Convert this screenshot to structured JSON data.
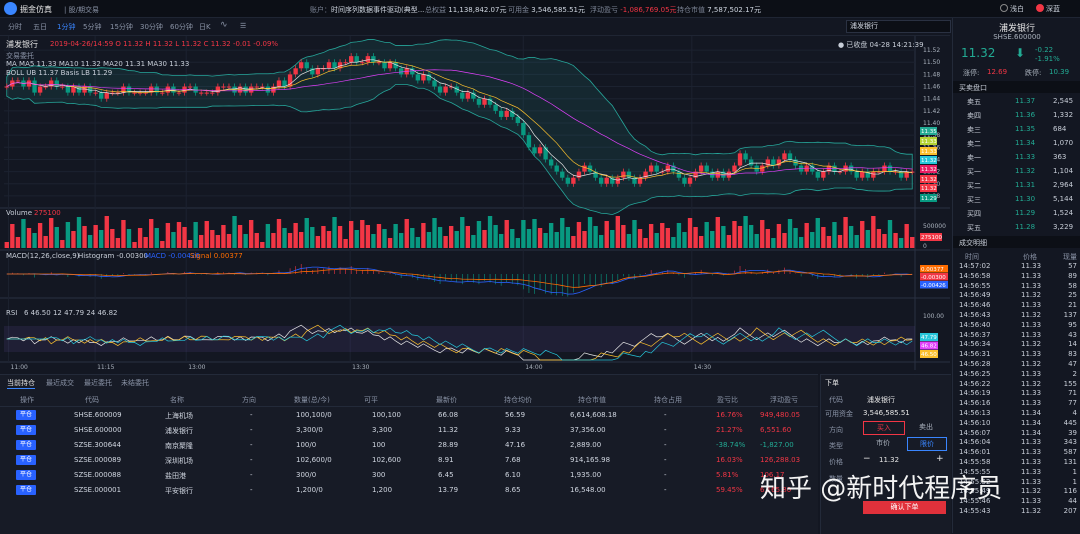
{
  "header": {
    "app_title": "掘金仿真",
    "app_sub": "| 股/期交易",
    "account_label": "账户：",
    "account_name": "时间序列数据事件驱动(典型...",
    "total_assets_label": "总权益",
    "total_assets": "11,138,842.07元",
    "available_label": "可用金",
    "available": "3,546,585.51元",
    "float_pnl_label": "浮动盈亏",
    "float_pnl": "-1,086,769.05元",
    "market_value_label": "持仓市值",
    "market_value": "7,587,502.17元",
    "theme_light": "浅白",
    "theme_dark": "深蓝"
  },
  "periods": [
    "分时",
    "五日",
    "1分钟",
    "5分钟",
    "15分钟",
    "30分钟",
    "60分钟",
    "日K"
  ],
  "active_period": "1分钟",
  "search_value": "浦发银行",
  "chart": {
    "stock_name": "浦发银行",
    "bar_info": "2019-04-26/14:59 O 11.32 H 11.32 L 11.32 C 11.32 -0.01 -0.09%",
    "sub_label": "交易委托",
    "ma_line": "MA  MA5 11.33  MA10 11.32  MA20 11.31  MA30 11.33",
    "boll_line": "BOLL UB 11.37 Basis LB 11.29",
    "close_note": "● 已收盘 04-28 14:21:39",
    "y_labels": [
      "11.52",
      "11.50",
      "11.48",
      "11.46",
      "11.44",
      "11.42",
      "11.40",
      "11.38",
      "11.36",
      "11.34",
      "11.32",
      "11.30",
      "11.28"
    ],
    "price_badges": [
      "11.35",
      "11.33",
      "11.33",
      "11.32",
      "11.32",
      "11.32",
      "11.32",
      "11.29"
    ],
    "volume_label": "Volume",
    "volume_value": "275100",
    "volume_y": [
      "500000",
      "0"
    ],
    "volume_badge": "275100",
    "macd_label": "MACD(12,26,close,9)",
    "macd_hist": "Histogram -0.00300",
    "macd_macd": "MACD -0.00426",
    "macd_signal": "Signal 0.00377",
    "macd_badges": [
      "0.00377",
      "-0.00300",
      "-0.00426"
    ],
    "rsi_label": "RSI",
    "rsi_values": "6 46.50  12 47.79  24 46.82",
    "rsi_y": "100.00",
    "rsi_badges": [
      "47.79",
      "46.82",
      "46.50"
    ],
    "time_labels": [
      "11:00",
      "11:15",
      "13:00",
      "13:30",
      "14:00",
      "14:30"
    ]
  },
  "chart_data": {
    "type": "candlestick",
    "title": "浦发银行",
    "xlabel": "",
    "ylabel": "",
    "ylim": [
      11.27,
      11.53
    ],
    "close": [
      11.46,
      11.47,
      11.47,
      11.46,
      11.47,
      11.45,
      11.46,
      11.46,
      11.47,
      11.46,
      11.46,
      11.45,
      11.46,
      11.45,
      11.46,
      11.45,
      11.45,
      11.44,
      11.45,
      11.45,
      11.45,
      11.46,
      11.45,
      11.45,
      11.45,
      11.45,
      11.46,
      11.45,
      11.45,
      11.46,
      11.45,
      11.45,
      11.46,
      11.46,
      11.45,
      11.45,
      11.45,
      11.45,
      11.46,
      11.46,
      11.46,
      11.45,
      11.46,
      11.45,
      11.46,
      11.46,
      11.46,
      11.45,
      11.46,
      11.47,
      11.46,
      11.48,
      11.49,
      11.5,
      11.49,
      11.48,
      11.49,
      11.49,
      11.5,
      11.49,
      11.5,
      11.5,
      11.51,
      11.5,
      11.5,
      11.51,
      11.5,
      11.5,
      11.49,
      11.5,
      11.49,
      11.48,
      11.49,
      11.48,
      11.47,
      11.48,
      11.47,
      11.46,
      11.45,
      11.46,
      11.46,
      11.45,
      11.44,
      11.45,
      11.44,
      11.43,
      11.44,
      11.43,
      11.42,
      11.41,
      11.42,
      11.41,
      11.4,
      11.38,
      11.36,
      11.35,
      11.36,
      11.34,
      11.33,
      11.32,
      11.31,
      11.3,
      11.31,
      11.32,
      11.33,
      11.32,
      11.31,
      11.3,
      11.31,
      11.3,
      11.31,
      11.32,
      11.31,
      11.3,
      11.31,
      11.32,
      11.33,
      11.32,
      11.32,
      11.33,
      11.32,
      11.31,
      11.3,
      11.31,
      11.32,
      11.33,
      11.32,
      11.31,
      11.32,
      11.31,
      11.32,
      11.33,
      11.35,
      11.34,
      11.33,
      11.32,
      11.33,
      11.34,
      11.33,
      11.34,
      11.35,
      11.34,
      11.33,
      11.32,
      11.33,
      11.32,
      11.31,
      11.32,
      11.33,
      11.32,
      11.32,
      11.33,
      11.32,
      11.31,
      11.32,
      11.31,
      11.32,
      11.32,
      11.33,
      11.32,
      11.32,
      11.31,
      11.32,
      11.32
    ],
    "volume_ylim": [
      0,
      800000
    ]
  },
  "bottom": {
    "tabs": [
      "当前持仓",
      "最近成交",
      "最近委托",
      "未结委托"
    ],
    "columns": [
      "操作",
      "代码",
      "名称",
      "方向",
      "数量(总/今)",
      "可平",
      "最新价",
      "持仓均价",
      "持仓市值",
      "持仓占用",
      "盈亏比",
      "浮动盈亏"
    ],
    "close_label": "平仓",
    "rows": [
      {
        "code": "SHSE.600009",
        "name": "上海机场",
        "dir": "-",
        "qty": "100,100/0",
        "avail": "100,100",
        "last": "66.08",
        "avg": "56.59",
        "mv": "6,614,608.18",
        "occ": "-",
        "ratio": "16.76%",
        "pnl": "949,480.05",
        "sign": "up"
      },
      {
        "code": "SHSE.600000",
        "name": "浦发银行",
        "dir": "-",
        "qty": "3,300/0",
        "avail": "3,300",
        "last": "11.32",
        "avg": "9.33",
        "mv": "37,356.00",
        "occ": "-",
        "ratio": "21.27%",
        "pnl": "6,551.60",
        "sign": "up"
      },
      {
        "code": "SZSE.300644",
        "name": "南京聚隆",
        "dir": "-",
        "qty": "100/0",
        "avail": "100",
        "last": "28.89",
        "avg": "47.16",
        "mv": "2,889.00",
        "occ": "-",
        "ratio": "-38.74%",
        "pnl": "-1,827.00",
        "sign": "down"
      },
      {
        "code": "SZSE.000089",
        "name": "深圳机场",
        "dir": "-",
        "qty": "102,600/0",
        "avail": "102,600",
        "last": "8.91",
        "avg": "7.68",
        "mv": "914,165.98",
        "occ": "-",
        "ratio": "16.03%",
        "pnl": "126,288.03",
        "sign": "up"
      },
      {
        "code": "SZSE.000088",
        "name": "盐田港",
        "dir": "-",
        "qty": "300/0",
        "avail": "300",
        "last": "6.45",
        "avg": "6.10",
        "mv": "1,935.00",
        "occ": "-",
        "ratio": "5.81%",
        "pnl": "106.17",
        "sign": "up"
      },
      {
        "code": "SZSE.000001",
        "name": "平安银行",
        "dir": "-",
        "qty": "1,200/0",
        "avail": "1,200",
        "last": "13.79",
        "avg": "8.65",
        "mv": "16,548.00",
        "occ": "-",
        "ratio": "59.45%",
        "pnl": "6,165.80",
        "sign": "up"
      }
    ]
  },
  "order": {
    "title": "下单",
    "code_label": "代码",
    "code_value": "浦发银行",
    "avail_label": "可用资金",
    "avail_value": "3,546,585.51",
    "dir_label": "方向",
    "buy": "买入",
    "sell": "卖出",
    "type_label": "类型",
    "market": "市价",
    "limit": "限价",
    "price_label": "价格",
    "price_minus": "−",
    "price_value": "11.32",
    "price_plus": "+",
    "qty_label": "数量",
    "submit": "确认下单"
  },
  "quote": {
    "name": "浦发银行",
    "code": "SHSE.600000",
    "price": "11.32",
    "change": "-0.22",
    "change_pct": "-1.91%",
    "limit_up_label": "涨停:",
    "limit_up": "12.69",
    "limit_down_label": "跌停:",
    "limit_down": "10.39",
    "book_title": "买卖盘口",
    "book": [
      {
        "label": "卖五",
        "price": "11.37",
        "vol": "2,545"
      },
      {
        "label": "卖四",
        "price": "11.36",
        "vol": "1,332"
      },
      {
        "label": "卖三",
        "price": "11.35",
        "vol": "684"
      },
      {
        "label": "卖二",
        "price": "11.34",
        "vol": "1,070"
      },
      {
        "label": "卖一",
        "price": "11.33",
        "vol": "363"
      },
      {
        "label": "买一",
        "price": "11.32",
        "vol": "1,104"
      },
      {
        "label": "买二",
        "price": "11.31",
        "vol": "2,964"
      },
      {
        "label": "买三",
        "price": "11.30",
        "vol": "5,144"
      },
      {
        "label": "买四",
        "price": "11.29",
        "vol": "1,524"
      },
      {
        "label": "买五",
        "price": "11.28",
        "vol": "3,229"
      }
    ],
    "trades_title": "成交明细",
    "trade_cols": [
      "时间",
      "价格",
      "现量"
    ],
    "trades": [
      [
        "14:57:02",
        "11.33",
        "57"
      ],
      [
        "14:56:58",
        "11.33",
        "89"
      ],
      [
        "14:56:55",
        "11.33",
        "58"
      ],
      [
        "14:56:49",
        "11.32",
        "25"
      ],
      [
        "14:56:46",
        "11.33",
        "21"
      ],
      [
        "14:56:43",
        "11.32",
        "137"
      ],
      [
        "14:56:40",
        "11.33",
        "95"
      ],
      [
        "14:56:37",
        "11.33",
        "43"
      ],
      [
        "14:56:34",
        "11.32",
        "14"
      ],
      [
        "14:56:31",
        "11.33",
        "83"
      ],
      [
        "14:56:28",
        "11.32",
        "47"
      ],
      [
        "14:56:25",
        "11.33",
        "2"
      ],
      [
        "14:56:22",
        "11.32",
        "155"
      ],
      [
        "14:56:19",
        "11.33",
        "71"
      ],
      [
        "14:56:16",
        "11.33",
        "77"
      ],
      [
        "14:56:13",
        "11.34",
        "4"
      ],
      [
        "14:56:10",
        "11.34",
        "445"
      ],
      [
        "14:56:07",
        "11.34",
        "39"
      ],
      [
        "14:56:04",
        "11.33",
        "343"
      ],
      [
        "14:56:01",
        "11.33",
        "587"
      ],
      [
        "14:55:58",
        "11.33",
        "131"
      ],
      [
        "14:55:55",
        "11.33",
        "1"
      ],
      [
        "14:55:52",
        "11.33",
        "1"
      ],
      [
        "14:55:49",
        "11.32",
        "116"
      ],
      [
        "14:55:46",
        "11.33",
        "44"
      ],
      [
        "14:55:43",
        "11.32",
        "207"
      ]
    ]
  },
  "watermark": "知乎 @新时代程序员",
  "colors": {
    "up": "#f23645",
    "down": "#089981",
    "accent": "#3a86ff",
    "bg": "#131722"
  }
}
